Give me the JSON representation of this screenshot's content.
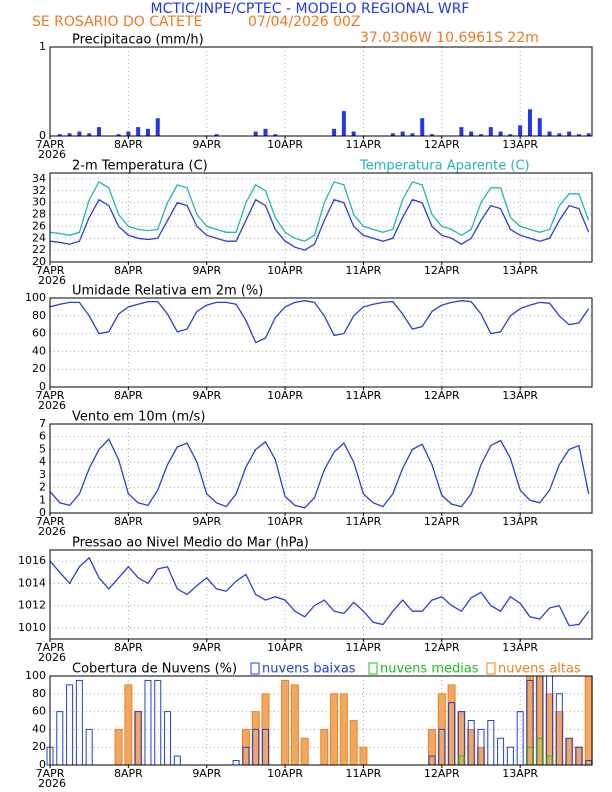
{
  "header": {
    "title": "MCTIC/INPE/CPTEC - MODELO REGIONAL WRF",
    "location": "SE ROSARIO DO CATETE",
    "datetime": "07/04/2026 00Z",
    "coords": "37.0306W  10.6961S  22m"
  },
  "chart_data": [
    {
      "type": "bar",
      "title": "Precipitacao (mm/h)",
      "color": "#2038e8",
      "x": [
        0,
        3,
        6,
        9,
        12,
        15,
        18,
        21,
        24,
        27,
        30,
        33,
        36,
        39,
        42,
        45,
        48,
        51,
        54,
        57,
        60,
        63,
        66,
        69,
        72,
        75,
        78,
        81,
        84,
        87,
        90,
        93,
        96,
        99,
        102,
        105,
        108,
        111,
        114,
        117,
        120,
        123,
        126,
        129,
        132,
        135,
        138,
        141,
        144,
        147,
        150,
        153,
        156,
        159,
        162,
        165
      ],
      "values": [
        0,
        0.02,
        0.03,
        0.05,
        0.03,
        0.1,
        0,
        0.02,
        0.05,
        0.1,
        0.08,
        0.2,
        0,
        0,
        0,
        0,
        0,
        0.02,
        0,
        0,
        0,
        0.05,
        0.08,
        0.02,
        0,
        0,
        0,
        0,
        0,
        0.08,
        0.28,
        0.05,
        0,
        0,
        0,
        0.03,
        0.05,
        0.03,
        0.2,
        0.02,
        0,
        0,
        0.1,
        0.05,
        0.02,
        0.1,
        0.05,
        0.02,
        0.12,
        0.3,
        0.2,
        0.05,
        0.03,
        0.05,
        0.02,
        0.03
      ],
      "xlim": [
        0,
        166
      ],
      "xticks": [
        {
          "value": 0,
          "label": "7APR"
        },
        {
          "value": 24,
          "label": "8APR"
        },
        {
          "value": 48,
          "label": "9APR"
        },
        {
          "value": 72,
          "label": "10APR"
        },
        {
          "value": 96,
          "label": "11APR"
        },
        {
          "value": 120,
          "label": "12APR"
        },
        {
          "value": 144,
          "label": "13APR"
        }
      ],
      "x_year": "2026",
      "ylim": [
        0,
        1
      ],
      "yticks": [
        0,
        1
      ],
      "grid": true
    },
    {
      "type": "line",
      "x": [
        0,
        3,
        6,
        9,
        12,
        15,
        18,
        21,
        24,
        27,
        30,
        33,
        36,
        39,
        42,
        45,
        48,
        51,
        54,
        57,
        60,
        63,
        66,
        69,
        72,
        75,
        78,
        81,
        84,
        87,
        90,
        93,
        96,
        99,
        102,
        105,
        108,
        111,
        114,
        117,
        120,
        123,
        126,
        129,
        132,
        135,
        138,
        141,
        144,
        147,
        150,
        153,
        156,
        159,
        162,
        165
      ],
      "series": [
        {
          "name": "2-m Temperatura (C)",
          "color": "#2b3fd6",
          "label_color": "#000000",
          "values": [
            23.5,
            23.3,
            23,
            23.5,
            27.5,
            30.5,
            29.5,
            26,
            24.5,
            24,
            23.8,
            24,
            27,
            30,
            29.5,
            26,
            24.5,
            24,
            23.5,
            23.5,
            27,
            30.5,
            29.5,
            25.5,
            23.5,
            22.5,
            22,
            23,
            27,
            30.5,
            30,
            26,
            24.5,
            24,
            23.5,
            24,
            27.5,
            30.5,
            30,
            26,
            24.5,
            24,
            23,
            24,
            27,
            29.5,
            29,
            25.5,
            24.5,
            24,
            23.5,
            24,
            27,
            29.5,
            29,
            25
          ]
        },
        {
          "name": "Temperatura Aparente (C)",
          "color": "#20b8b0",
          "label_color": "#20b8b0",
          "values": [
            25,
            24.8,
            24.5,
            25,
            30.5,
            33.5,
            32.5,
            28,
            26,
            25.5,
            25.3,
            25.5,
            30,
            33,
            32.5,
            28,
            26,
            25.5,
            25,
            25,
            30,
            33,
            32,
            27.5,
            25,
            24,
            23.5,
            24.5,
            30,
            33.5,
            33,
            28,
            26,
            25.5,
            25,
            25.5,
            30.5,
            33.5,
            33,
            28,
            26,
            25.5,
            24.5,
            25.5,
            30,
            32.5,
            32.5,
            27.5,
            26,
            25.5,
            25,
            25.5,
            29.5,
            31.5,
            31.5,
            27
          ]
        }
      ],
      "xlim": [
        0,
        166
      ],
      "xticks": [
        {
          "value": 0,
          "label": "7APR"
        },
        {
          "value": 24,
          "label": "8APR"
        },
        {
          "value": 48,
          "label": "9APR"
        },
        {
          "value": 72,
          "label": "10APR"
        },
        {
          "value": 96,
          "label": "11APR"
        },
        {
          "value": 120,
          "label": "12APR"
        },
        {
          "value": 144,
          "label": "13APR"
        }
      ],
      "x_year": "2026",
      "ylim": [
        20,
        35
      ],
      "yticks": [
        20,
        22,
        24,
        26,
        28,
        30,
        32,
        34
      ],
      "grid": true
    },
    {
      "type": "line",
      "title": "Umidade Relativa em 2m (%)",
      "x": [
        0,
        3,
        6,
        9,
        12,
        15,
        18,
        21,
        24,
        27,
        30,
        33,
        36,
        39,
        42,
        45,
        48,
        51,
        54,
        57,
        60,
        63,
        66,
        69,
        72,
        75,
        78,
        81,
        84,
        87,
        90,
        93,
        96,
        99,
        102,
        105,
        108,
        111,
        114,
        117,
        120,
        123,
        126,
        129,
        132,
        135,
        138,
        141,
        144,
        147,
        150,
        153,
        156,
        159,
        162,
        165
      ],
      "series": [
        {
          "color": "#2b3fd6",
          "values": [
            90,
            93,
            95,
            95,
            80,
            60,
            62,
            82,
            90,
            93,
            96,
            96,
            82,
            62,
            65,
            85,
            92,
            95,
            95,
            93,
            75,
            50,
            55,
            78,
            90,
            95,
            97,
            95,
            80,
            58,
            60,
            80,
            90,
            93,
            95,
            96,
            82,
            65,
            68,
            85,
            92,
            95,
            97,
            96,
            82,
            60,
            62,
            80,
            88,
            92,
            95,
            94,
            80,
            70,
            72,
            88
          ]
        }
      ],
      "xlim": [
        0,
        166
      ],
      "xticks": [
        {
          "value": 0,
          "label": "7APR"
        },
        {
          "value": 24,
          "label": "8APR"
        },
        {
          "value": 48,
          "label": "9APR"
        },
        {
          "value": 72,
          "label": "10APR"
        },
        {
          "value": 96,
          "label": "11APR"
        },
        {
          "value": 120,
          "label": "12APR"
        },
        {
          "value": 144,
          "label": "13APR"
        }
      ],
      "x_year": "2026",
      "ylim": [
        0,
        100
      ],
      "yticks": [
        0,
        20,
        40,
        60,
        80,
        100
      ],
      "grid": true
    },
    {
      "type": "line",
      "title": "Vento em 10m (m/s)",
      "x": [
        0,
        3,
        6,
        9,
        12,
        15,
        18,
        21,
        24,
        27,
        30,
        33,
        36,
        39,
        42,
        45,
        48,
        51,
        54,
        57,
        60,
        63,
        66,
        69,
        72,
        75,
        78,
        81,
        84,
        87,
        90,
        93,
        96,
        99,
        102,
        105,
        108,
        111,
        114,
        117,
        120,
        123,
        126,
        129,
        132,
        135,
        138,
        141,
        144,
        147,
        150,
        153,
        156,
        159,
        162,
        165
      ],
      "series": [
        {
          "color": "#2b3fd6",
          "values": [
            1.7,
            0.8,
            0.6,
            1.5,
            3.5,
            5,
            5.8,
            4.2,
            1.5,
            0.8,
            0.6,
            1.8,
            3.8,
            5.2,
            5.5,
            4,
            1.5,
            0.8,
            0.5,
            1.5,
            3.6,
            5,
            5.6,
            4.2,
            1.3,
            0.6,
            0.4,
            1.2,
            3.4,
            4.8,
            5.5,
            4,
            1.5,
            0.8,
            0.5,
            1.5,
            3.5,
            5,
            5.4,
            3.8,
            1.4,
            0.7,
            0.5,
            1.5,
            3.8,
            5.3,
            5.7,
            4.3,
            1.8,
            1,
            0.8,
            1.8,
            3.8,
            5,
            5.3,
            1.5
          ]
        }
      ],
      "xlim": [
        0,
        166
      ],
      "xticks": [
        {
          "value": 0,
          "label": "7APR"
        },
        {
          "value": 24,
          "label": "8APR"
        },
        {
          "value": 48,
          "label": "9APR"
        },
        {
          "value": 72,
          "label": "10APR"
        },
        {
          "value": 96,
          "label": "11APR"
        },
        {
          "value": 120,
          "label": "12APR"
        },
        {
          "value": 144,
          "label": "13APR"
        }
      ],
      "x_year": "2026",
      "ylim": [
        0,
        7
      ],
      "yticks": [
        0,
        1,
        2,
        3,
        4,
        5,
        6,
        7
      ],
      "grid": true
    },
    {
      "type": "line",
      "title": "Pressao ao Nivel Medio do Mar (hPa)",
      "x": [
        0,
        3,
        6,
        9,
        12,
        15,
        18,
        21,
        24,
        27,
        30,
        33,
        36,
        39,
        42,
        45,
        48,
        51,
        54,
        57,
        60,
        63,
        66,
        69,
        72,
        75,
        78,
        81,
        84,
        87,
        90,
        93,
        96,
        99,
        102,
        105,
        108,
        111,
        114,
        117,
        120,
        123,
        126,
        129,
        132,
        135,
        138,
        141,
        144,
        147,
        150,
        153,
        156,
        159,
        162,
        165
      ],
      "series": [
        {
          "color": "#2b3fd6",
          "values": [
            1016,
            1015,
            1014,
            1015.5,
            1016.3,
            1014.5,
            1013.5,
            1014.5,
            1015.5,
            1014.5,
            1014,
            1015.3,
            1015.5,
            1013.5,
            1013,
            1013.8,
            1014.5,
            1013.5,
            1013.3,
            1014.2,
            1014.8,
            1013,
            1012.5,
            1012.8,
            1012.5,
            1011.5,
            1011,
            1012,
            1012.5,
            1011.5,
            1011.3,
            1012.3,
            1011.5,
            1010.5,
            1010.3,
            1011.5,
            1012.5,
            1011.5,
            1011.5,
            1012.5,
            1012.8,
            1012,
            1011.5,
            1012.7,
            1013.2,
            1012,
            1011.5,
            1012.8,
            1012.2,
            1011,
            1010.8,
            1011.8,
            1012,
            1010.2,
            1010.3,
            1011.5
          ]
        }
      ],
      "xlim": [
        0,
        166
      ],
      "xticks": [
        {
          "value": 0,
          "label": "7APR"
        },
        {
          "value": 24,
          "label": "8APR"
        },
        {
          "value": 48,
          "label": "9APR"
        },
        {
          "value": 72,
          "label": "10APR"
        },
        {
          "value": 96,
          "label": "11APR"
        },
        {
          "value": 120,
          "label": "12APR"
        },
        {
          "value": 144,
          "label": "13APR"
        }
      ],
      "x_year": "2026",
      "ylim": [
        1009,
        1017
      ],
      "yticks": [
        1010,
        1012,
        1014,
        1016
      ],
      "grid": true
    },
    {
      "type": "bar",
      "title": "Cobertura de Nuvens (%)",
      "x": [
        0,
        3,
        6,
        9,
        12,
        15,
        18,
        21,
        24,
        27,
        30,
        33,
        36,
        39,
        42,
        45,
        48,
        51,
        54,
        57,
        60,
        63,
        66,
        69,
        72,
        75,
        78,
        81,
        84,
        87,
        90,
        93,
        96,
        99,
        102,
        105,
        108,
        111,
        114,
        117,
        120,
        123,
        126,
        129,
        132,
        135,
        138,
        141,
        144,
        147,
        150,
        153,
        156,
        159,
        162,
        165
      ],
      "series": [
        {
          "name": "nuvens altas",
          "color": "#f08020",
          "values": [
            0,
            0,
            0,
            0,
            0,
            0,
            0,
            40,
            90,
            60,
            0,
            0,
            0,
            0,
            0,
            0,
            0,
            0,
            0,
            0,
            40,
            60,
            80,
            0,
            95,
            90,
            30,
            0,
            40,
            80,
            80,
            50,
            20,
            0,
            0,
            0,
            0,
            0,
            0,
            40,
            80,
            90,
            60,
            40,
            20,
            0,
            0,
            0,
            0,
            100,
            100,
            80,
            60,
            30,
            20,
            100
          ]
        },
        {
          "name": "nuvens baixas",
          "color": "#2040e0",
          "values": [
            20,
            60,
            90,
            95,
            40,
            0,
            0,
            0,
            0,
            60,
            95,
            95,
            60,
            10,
            0,
            0,
            0,
            0,
            0,
            5,
            20,
            40,
            40,
            0,
            0,
            0,
            0,
            0,
            0,
            0,
            0,
            0,
            0,
            0,
            0,
            0,
            0,
            0,
            0,
            10,
            40,
            70,
            60,
            50,
            40,
            50,
            30,
            20,
            60,
            95,
            100,
            100,
            80,
            30,
            20,
            5
          ]
        },
        {
          "name": "nuvens medias",
          "color": "#20c020",
          "values": [
            0,
            0,
            0,
            0,
            0,
            0,
            0,
            0,
            0,
            0,
            0,
            0,
            0,
            0,
            0,
            0,
            0,
            0,
            0,
            0,
            0,
            0,
            0,
            0,
            0,
            0,
            0,
            0,
            0,
            0,
            0,
            0,
            0,
            0,
            0,
            0,
            0,
            0,
            0,
            0,
            0,
            0,
            10,
            0,
            0,
            0,
            0,
            0,
            0,
            20,
            30,
            10,
            0,
            0,
            0,
            0
          ]
        }
      ],
      "xlim": [
        0,
        166
      ],
      "xticks": [
        {
          "value": 0,
          "label": "7APR"
        },
        {
          "value": 24,
          "label": "8APR"
        },
        {
          "value": 48,
          "label": "9APR"
        },
        {
          "value": 72,
          "label": "10APR"
        },
        {
          "value": 96,
          "label": "11APR"
        },
        {
          "value": 120,
          "label": "12APR"
        },
        {
          "value": 144,
          "label": "13APR"
        }
      ],
      "x_year": "2026",
      "ylim": [
        0,
        100
      ],
      "yticks": [
        0,
        20,
        40,
        60,
        80,
        100
      ],
      "grid": true
    }
  ]
}
